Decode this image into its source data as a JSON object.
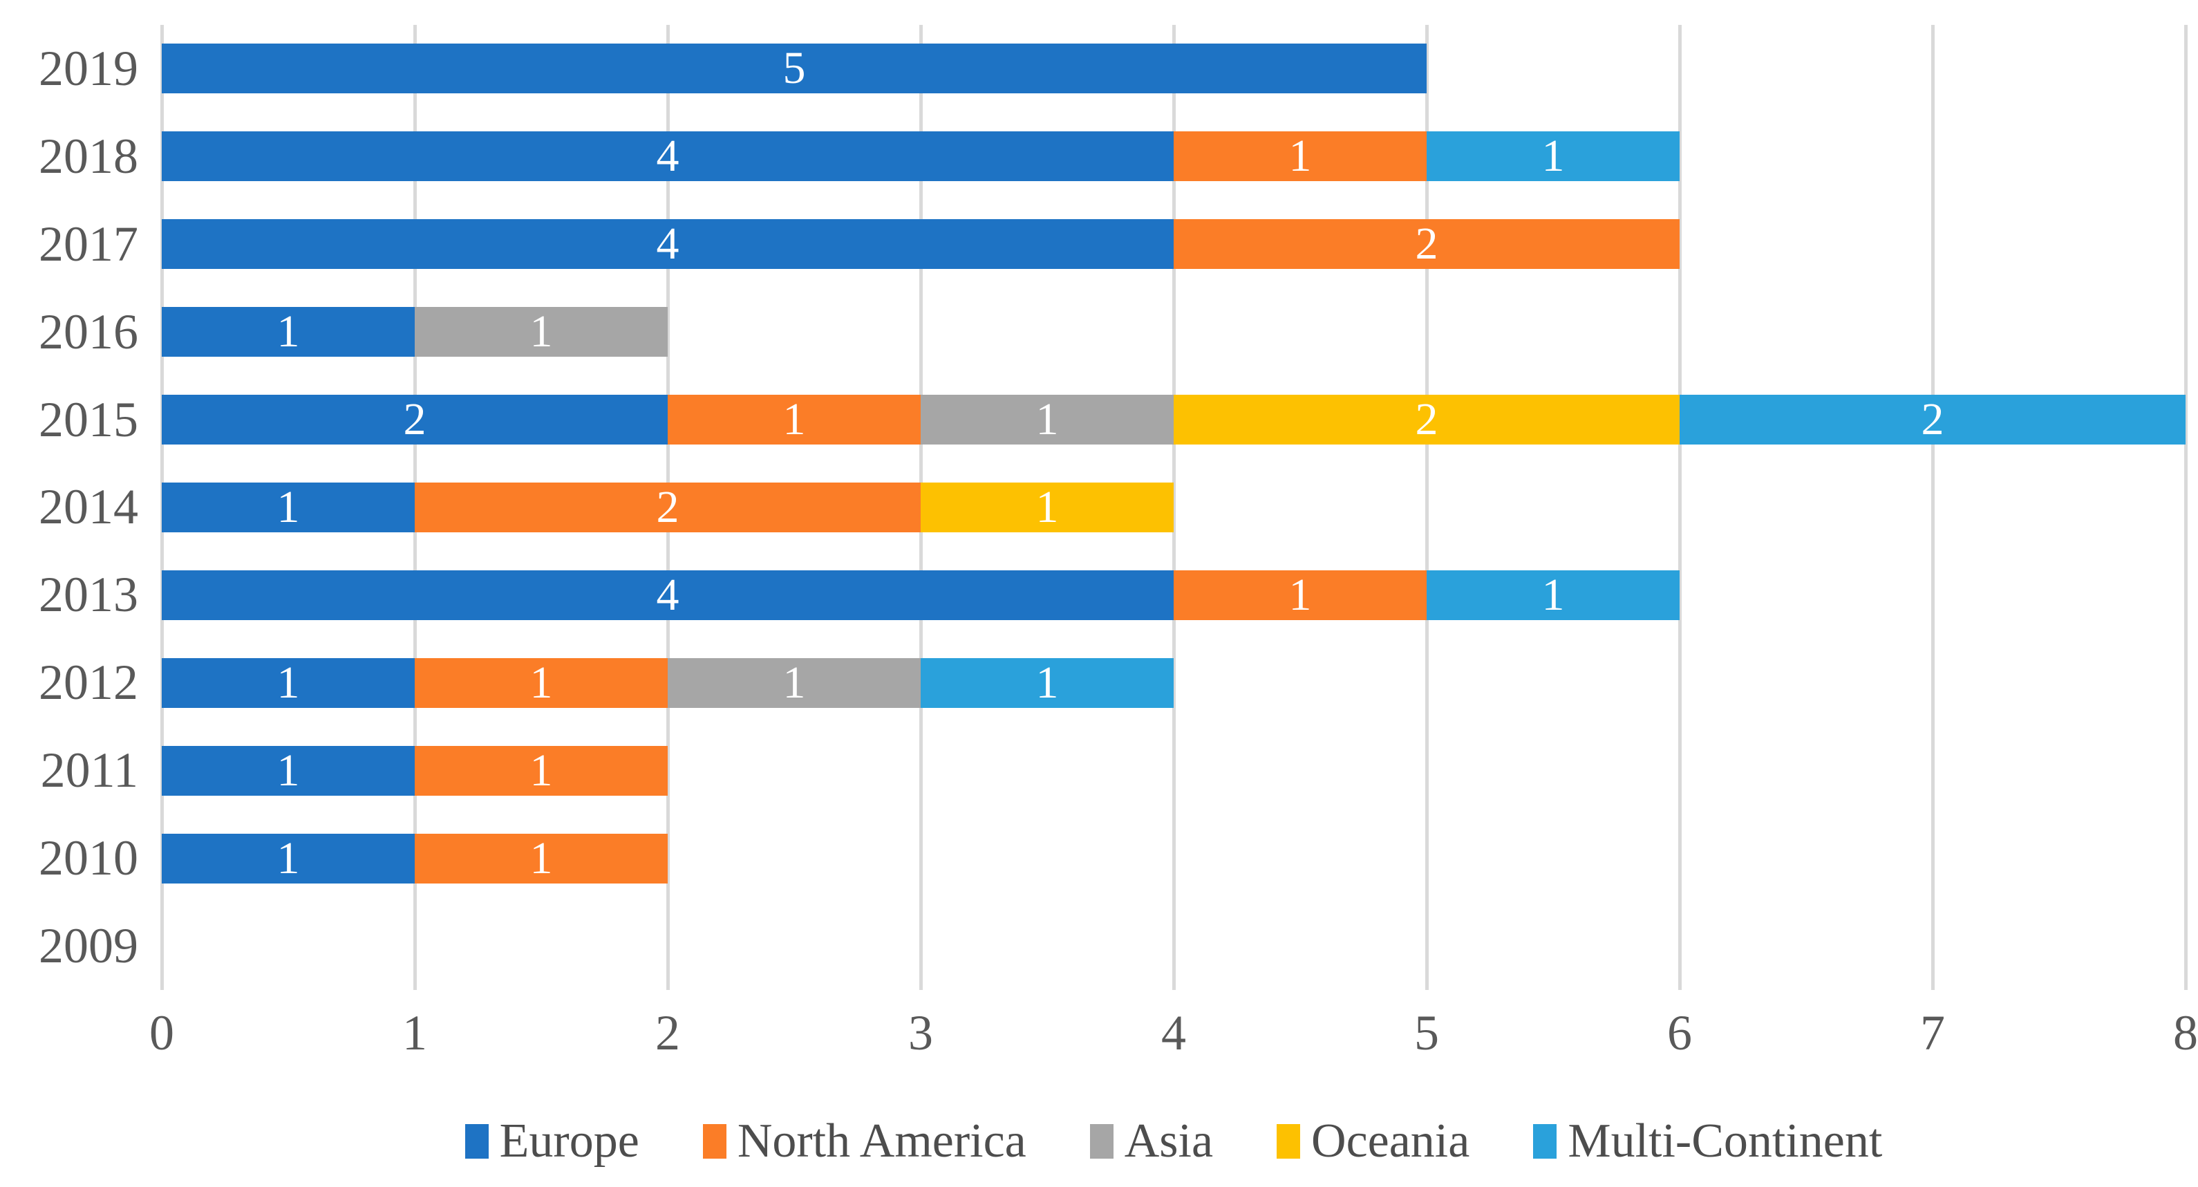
{
  "chart_data": {
    "type": "bar",
    "orientation": "horizontal",
    "stacked": true,
    "title": "",
    "xlabel": "",
    "ylabel": "",
    "categories": [
      "2019",
      "2018",
      "2017",
      "2016",
      "2015",
      "2014",
      "2013",
      "2012",
      "2011",
      "2010",
      "2009"
    ],
    "series": [
      {
        "name": "Europe",
        "color": "#1e73c4",
        "values": [
          5,
          4,
          4,
          1,
          2,
          1,
          4,
          1,
          1,
          1,
          0
        ]
      },
      {
        "name": "North America",
        "color": "#fb7d27",
        "values": [
          0,
          1,
          2,
          0,
          1,
          2,
          1,
          1,
          1,
          1,
          0
        ]
      },
      {
        "name": "Asia",
        "color": "#a6a6a6",
        "values": [
          0,
          0,
          0,
          1,
          1,
          0,
          0,
          1,
          0,
          0,
          0
        ]
      },
      {
        "name": "Oceania",
        "color": "#fdc101",
        "values": [
          0,
          0,
          0,
          0,
          2,
          1,
          0,
          0,
          0,
          0,
          0
        ]
      },
      {
        "name": "Multi-Continent",
        "color": "#2aa1db",
        "values": [
          0,
          1,
          0,
          0,
          2,
          0,
          1,
          1,
          0,
          0,
          0
        ]
      }
    ],
    "xlim": [
      0,
      8
    ],
    "x_tick_labels": [
      "0",
      "1",
      "2",
      "3",
      "4",
      "5",
      "6",
      "7",
      "8"
    ],
    "grid": true,
    "gridline_color": "#d9d9d9",
    "axis_text_color": "#595959",
    "bar_value_label_color": "#ffffff",
    "legend_position": "bottom",
    "legend_labels": [
      "Europe",
      "North America",
      "Asia",
      "Oceania",
      "Multi-Continent"
    ]
  }
}
